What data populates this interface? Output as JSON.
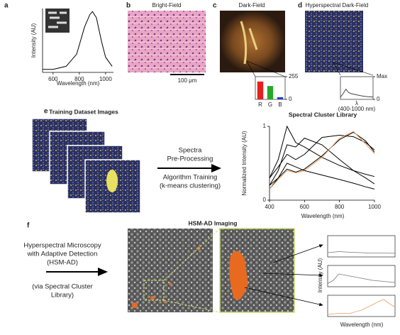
{
  "panels": {
    "a": {
      "label": "a",
      "chart": {
        "type": "line",
        "ylabel": "Intensity (AU)",
        "xlabel": "Wavelength (nm)",
        "x": [
          520,
          600,
          700,
          780,
          840,
          880,
          900,
          930,
          970,
          1000,
          1050
        ],
        "values": [
          0.05,
          0.05,
          0.1,
          0.3,
          0.75,
          0.95,
          1.0,
          0.9,
          0.5,
          0.25,
          0.1
        ],
        "color": "#000000",
        "xlim": [
          520,
          1060
        ],
        "ylim": [
          0,
          1.05
        ],
        "xticks": [
          600,
          800,
          1000
        ]
      }
    },
    "b": {
      "label": "b",
      "title": "Bright-Field",
      "scale_bar": "100 μm"
    },
    "c": {
      "label": "c",
      "title": "Dark-Field",
      "chart": {
        "type": "bar",
        "categories": [
          "R",
          "G",
          "B"
        ],
        "values": [
          200,
          150,
          25
        ],
        "colors": [
          "#e8201c",
          "#28a82a",
          "#2840c0"
        ],
        "ylim": [
          0,
          255
        ],
        "yticks": [
          0,
          255
        ]
      }
    },
    "d": {
      "label": "d",
      "title": "Hyperspectral Dark-Field",
      "chart": {
        "type": "line",
        "xlabel": "λ",
        "note": "(400-1000 nm)",
        "x": [
          400,
          450,
          500,
          550,
          600,
          700,
          800,
          900,
          1000
        ],
        "values": [
          0.1,
          0.25,
          0.45,
          0.3,
          0.25,
          0.2,
          0.15,
          0.12,
          0.1
        ],
        "color": "#444444",
        "xlim": [
          400,
          1000
        ],
        "ylim": [
          0,
          1
        ],
        "yticks": [
          0,
          {
            "value": 1,
            "label": "Max"
          }
        ]
      }
    },
    "e": {
      "label": "e",
      "training_title": "Training Dataset Images",
      "step1": [
        "Spectra",
        "Pre-Processing"
      ],
      "step2": [
        "Algorithm Training",
        "(k-means clustering)"
      ],
      "chart": {
        "type": "line",
        "title": "Spectral Cluster Library",
        "xlabel": "Wavelength (nm)",
        "ylabel": "Normalized Intensity (AU)",
        "x": [
          400,
          450,
          500,
          550,
          600,
          700,
          800,
          880,
          950,
          1000
        ],
        "series": [
          {
            "color": "#000000",
            "values": [
              0.3,
              0.55,
              1.0,
              0.78,
              0.72,
              0.58,
              0.47,
              0.4,
              0.35,
              0.32
            ]
          },
          {
            "color": "#000000",
            "values": [
              0.2,
              0.4,
              0.75,
              0.72,
              0.84,
              0.75,
              0.55,
              0.4,
              0.3,
              0.22
            ]
          },
          {
            "color": "#000000",
            "values": [
              0.3,
              0.45,
              0.62,
              0.55,
              0.62,
              0.85,
              0.88,
              0.86,
              0.78,
              0.68
            ]
          },
          {
            "color": "#000000",
            "values": [
              0.15,
              0.3,
              0.42,
              0.38,
              0.42,
              0.6,
              0.82,
              0.92,
              0.8,
              0.65
            ]
          },
          {
            "color": "#e8a060",
            "values": [
              0.15,
              0.28,
              0.4,
              0.37,
              0.4,
              0.58,
              0.84,
              0.93,
              0.76,
              0.63
            ]
          },
          {
            "color": "#000000",
            "values": [
              0.2,
              0.3,
              0.5,
              0.45,
              0.4,
              0.34,
              0.28,
              0.23,
              0.18,
              0.15
            ]
          }
        ],
        "xlim": [
          400,
          1000
        ],
        "ylim": [
          0,
          1
        ],
        "xticks": [
          400,
          600,
          800,
          1000
        ],
        "yticks": [
          0,
          1
        ]
      }
    },
    "f": {
      "label": "f",
      "title": "HSM-AD Imaging",
      "method": [
        "Hyperspectral Microscopy",
        "with Adaptive Detection",
        "(HSM-AD)"
      ],
      "via": [
        "(via Spectral Cluster",
        "Library)"
      ],
      "ylabel": "Intensity (AU)",
      "xlabel": "Wavelength (nm)",
      "charts": [
        {
          "type": "line",
          "x": [
            400,
            500,
            600,
            700,
            800,
            900,
            1000
          ],
          "values": [
            0.2,
            0.25,
            0.22,
            0.2,
            0.18,
            0.18,
            0.17
          ],
          "color": "#777777",
          "xlim": [
            400,
            1000
          ],
          "ylim": [
            0,
            1
          ]
        },
        {
          "type": "line",
          "x": [
            400,
            450,
            500,
            600,
            700,
            800,
            900,
            1000
          ],
          "values": [
            0.15,
            0.3,
            0.6,
            0.5,
            0.4,
            0.3,
            0.25,
            0.2
          ],
          "color": "#777777",
          "xlim": [
            400,
            1000
          ],
          "ylim": [
            0,
            1
          ]
        },
        {
          "type": "line",
          "x": [
            400,
            500,
            600,
            700,
            800,
            850,
            900,
            950,
            1000
          ],
          "values": [
            0.1,
            0.15,
            0.15,
            0.3,
            0.55,
            0.7,
            0.8,
            0.6,
            0.45
          ],
          "color": "#e8a060",
          "xlim": [
            400,
            1000
          ],
          "ylim": [
            0,
            1
          ]
        }
      ]
    }
  }
}
